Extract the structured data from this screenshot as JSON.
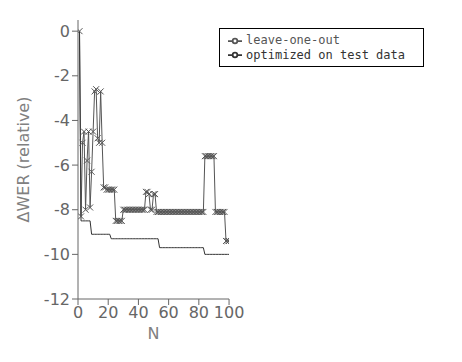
{
  "chart_data": {
    "type": "line",
    "xlabel": "N",
    "ylabel": "ΔWER (relative)",
    "xlim": [
      0,
      100
    ],
    "ylim": [
      -12,
      0.5
    ],
    "yticks": [
      0,
      -2,
      -4,
      -6,
      -8,
      -10,
      -12
    ],
    "xticks": [
      0,
      20,
      40,
      60,
      80,
      100
    ],
    "grid": false,
    "legend": "upper right",
    "x": [
      1,
      2,
      3,
      4,
      5,
      6,
      7,
      8,
      9,
      10,
      11,
      12,
      13,
      14,
      15,
      16,
      17,
      18,
      19,
      20,
      21,
      22,
      23,
      24,
      25,
      26,
      27,
      28,
      29,
      30,
      31,
      32,
      33,
      34,
      35,
      36,
      37,
      38,
      39,
      40,
      41,
      42,
      43,
      44,
      45,
      46,
      47,
      48,
      49,
      50,
      51,
      52,
      53,
      54,
      55,
      56,
      57,
      58,
      59,
      60,
      61,
      62,
      63,
      64,
      65,
      66,
      67,
      68,
      69,
      70,
      71,
      72,
      73,
      74,
      75,
      76,
      77,
      78,
      79,
      80,
      81,
      82,
      83,
      84,
      85,
      86,
      87,
      88,
      89,
      90,
      91,
      92,
      93,
      94,
      95,
      96,
      97,
      98,
      99,
      100
    ],
    "series": [
      {
        "name": "leave-one-out",
        "color": "#555555",
        "marker": "x",
        "values": [
          0,
          -8.3,
          -5.0,
          -4.5,
          -8.0,
          -5.8,
          -4.5,
          -7.9,
          -6.3,
          -4.5,
          -2.7,
          -2.6,
          -4.8,
          -5.0,
          -2.7,
          -5.0,
          -7.0,
          -7.0,
          -7.1,
          -7.1,
          -7.1,
          -7.1,
          -7.1,
          -7.1,
          -8.5,
          -8.5,
          -8.5,
          -8.5,
          -8.5,
          -8.0,
          -8.0,
          -8.0,
          -8.0,
          -8.0,
          -8.0,
          -8.0,
          -8.0,
          -8.0,
          -8.0,
          -8.0,
          -8.0,
          -8.0,
          -8.0,
          -8.0,
          -7.2,
          -7.2,
          -7.3,
          -8.0,
          -8.0,
          -7.3,
          -7.3,
          -8.1,
          -8.1,
          -8.1,
          -8.1,
          -8.1,
          -8.1,
          -8.1,
          -8.1,
          -8.1,
          -8.1,
          -8.1,
          -8.1,
          -8.1,
          -8.1,
          -8.1,
          -8.1,
          -8.1,
          -8.1,
          -8.1,
          -8.1,
          -8.1,
          -8.1,
          -8.1,
          -8.1,
          -8.1,
          -8.1,
          -8.1,
          -8.1,
          -8.1,
          -8.1,
          -8.1,
          -8.1,
          -5.6,
          -5.6,
          -5.6,
          -5.6,
          -5.6,
          -5.6,
          -5.6,
          -8.1,
          -8.1,
          -8.1,
          -8.1,
          -8.1,
          -8.1,
          -8.1,
          -9.4,
          -9.4,
          -9.4
        ]
      },
      {
        "name": "optimized on test data",
        "color": "#333333",
        "values": [
          0,
          -8.5,
          -8.5,
          -8.5,
          -8.5,
          -8.5,
          -8.5,
          -8.5,
          -9.1,
          -9.1,
          -9.1,
          -9.1,
          -9.1,
          -9.1,
          -9.1,
          -9.1,
          -9.1,
          -9.1,
          -9.1,
          -9.1,
          -9.1,
          -9.3,
          -9.3,
          -9.3,
          -9.3,
          -9.3,
          -9.3,
          -9.3,
          -9.3,
          -9.3,
          -9.3,
          -9.3,
          -9.3,
          -9.3,
          -9.3,
          -9.3,
          -9.3,
          -9.3,
          -9.3,
          -9.3,
          -9.3,
          -9.3,
          -9.3,
          -9.3,
          -9.3,
          -9.3,
          -9.3,
          -9.3,
          -9.3,
          -9.3,
          -9.3,
          -9.3,
          -9.3,
          -9.7,
          -9.7,
          -9.7,
          -9.7,
          -9.7,
          -9.7,
          -9.7,
          -9.7,
          -9.7,
          -9.7,
          -9.7,
          -9.7,
          -9.7,
          -9.7,
          -9.7,
          -9.7,
          -9.7,
          -9.7,
          -9.7,
          -9.7,
          -9.7,
          -9.7,
          -9.7,
          -9.7,
          -9.7,
          -9.7,
          -9.7,
          -9.7,
          -9.7,
          -9.7,
          -10.0,
          -10.0,
          -10.0,
          -10.0,
          -10.0,
          -10.0,
          -10.0,
          -10.0,
          -10.0,
          -10.0,
          -10.0,
          -10.0,
          -10.0,
          -10.0,
          -10.0,
          -10.0,
          -10.0
        ]
      }
    ]
  }
}
